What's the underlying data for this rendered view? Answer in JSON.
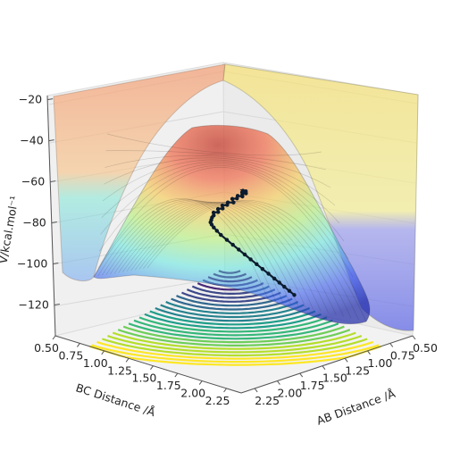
{
  "chart_data": {
    "type": "surface3d",
    "title": "",
    "xlabel": "AB Distance /Å",
    "ylabel": "BC Distance /Å",
    "zlabel": "V/kcal.mol⁻¹",
    "x_ticks": [
      "0.50",
      "0.75",
      "1.00",
      "1.25",
      "1.50",
      "1.75",
      "2.00",
      "2.25"
    ],
    "y_ticks": [
      "0.50",
      "0.75",
      "1.00",
      "1.25",
      "1.50",
      "1.75",
      "2.00",
      "2.25"
    ],
    "z_ticks": [
      "−20",
      "−40",
      "−60",
      "−80",
      "−100",
      "−120"
    ],
    "x_range": [
      0.5,
      2.4
    ],
    "y_range": [
      0.5,
      2.4
    ],
    "z_range": [
      -135,
      -18
    ],
    "colormap_surface": "jet",
    "colormap_contour": "viridis",
    "grid": true,
    "trajectory": {
      "color": "#0c1c2e",
      "points": [
        [
          0.55,
          0.74
        ],
        [
          0.56,
          0.72
        ],
        [
          0.57,
          0.76
        ],
        [
          0.58,
          0.73
        ],
        [
          0.6,
          0.75
        ],
        [
          0.62,
          0.77
        ],
        [
          0.64,
          0.74
        ],
        [
          0.67,
          0.76
        ],
        [
          0.7,
          0.74
        ],
        [
          0.73,
          0.78
        ],
        [
          0.76,
          0.75
        ],
        [
          0.79,
          0.77
        ],
        [
          0.82,
          0.75
        ],
        [
          0.85,
          0.78
        ],
        [
          0.88,
          0.76
        ],
        [
          0.91,
          0.79
        ],
        [
          0.94,
          0.77
        ],
        [
          0.97,
          0.8
        ],
        [
          1.0,
          0.81
        ],
        [
          1.03,
          0.83
        ],
        [
          1.06,
          0.85
        ],
        [
          1.08,
          0.88
        ],
        [
          1.1,
          0.92
        ],
        [
          1.12,
          0.97
        ],
        [
          1.14,
          1.03
        ],
        [
          1.15,
          1.1
        ],
        [
          1.16,
          1.17
        ],
        [
          1.17,
          1.24
        ],
        [
          1.18,
          1.31
        ],
        [
          1.19,
          1.38
        ],
        [
          1.2,
          1.45
        ],
        [
          1.21,
          1.52
        ],
        [
          1.22,
          1.59
        ],
        [
          1.23,
          1.66
        ],
        [
          1.24,
          1.72
        ],
        [
          1.25,
          1.78
        ],
        [
          1.26,
          1.84
        ],
        [
          1.27,
          1.9
        ]
      ]
    }
  }
}
